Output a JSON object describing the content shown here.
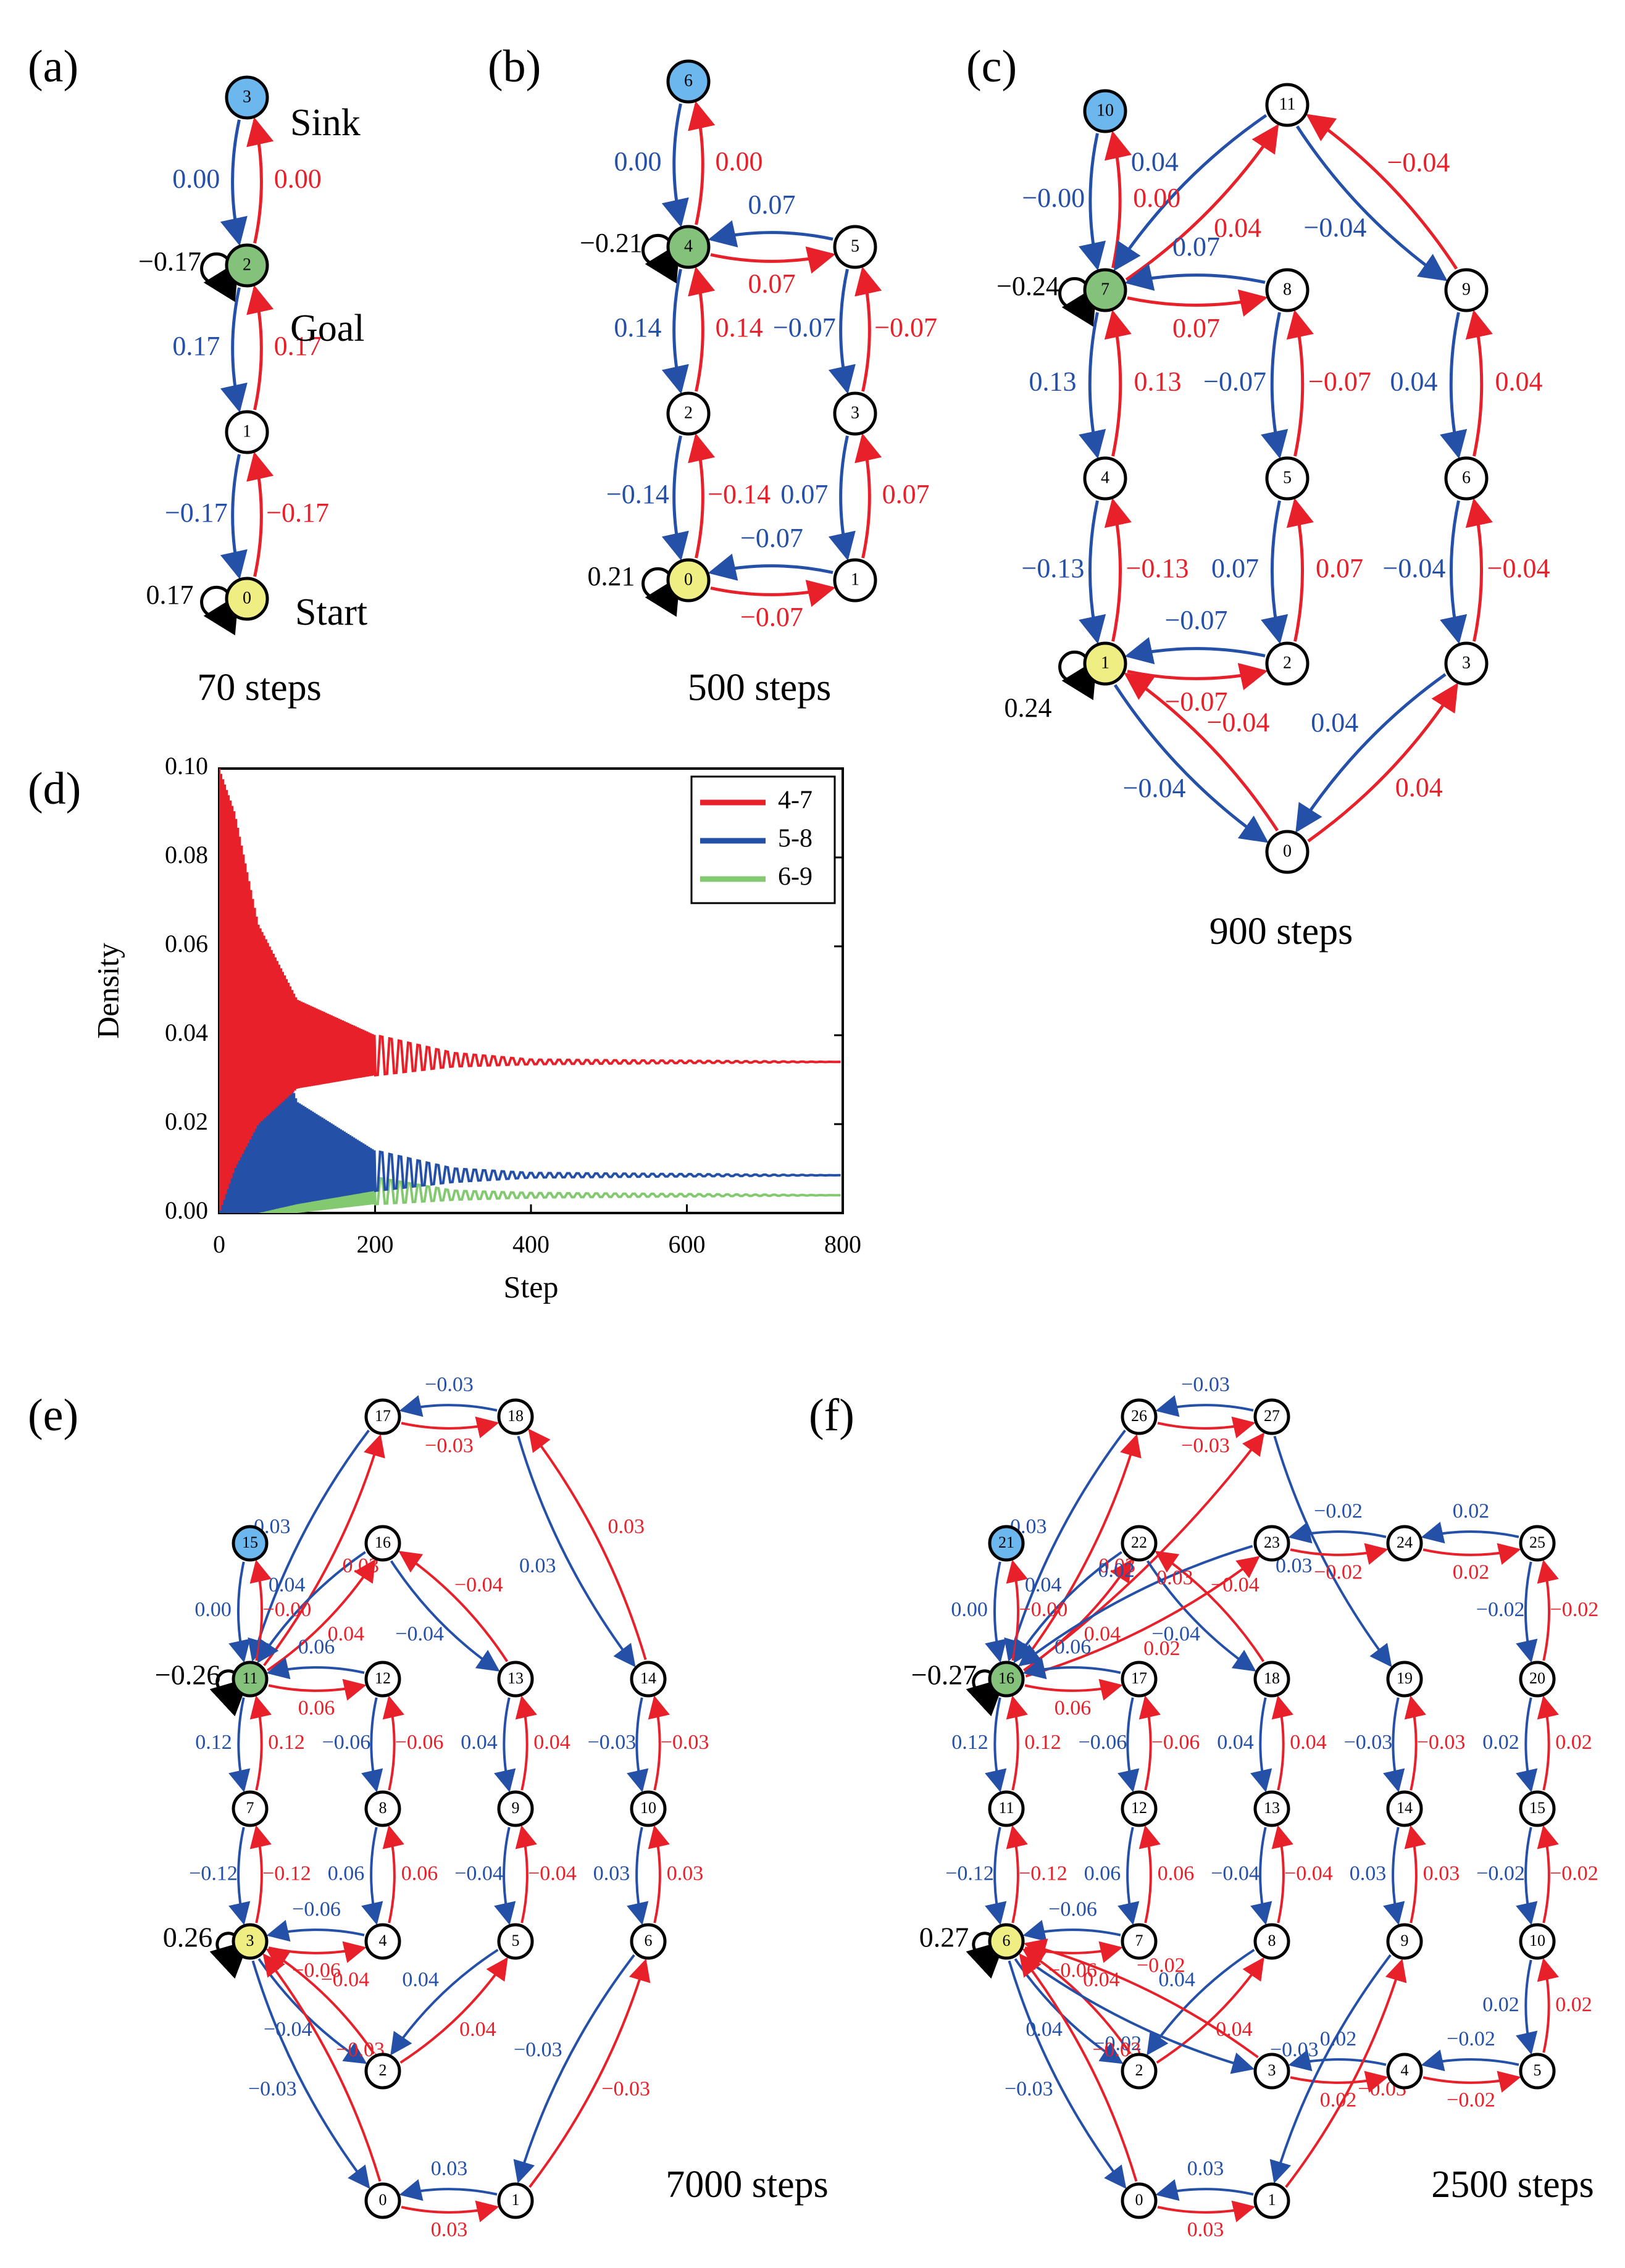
{
  "colors": {
    "red": "#e8202a",
    "blue": "#2450a8",
    "green": "#82c96f",
    "sink": "#6cb7ee",
    "goal": "#84c27c",
    "start": "#eeee82",
    "node_fill": "#ffffff",
    "edge": "#000000"
  },
  "panels": [
    {
      "id": "a",
      "label": "(a)",
      "caption": "70 steps",
      "nodes": [
        {
          "id": "0",
          "role": "start"
        },
        {
          "id": "1",
          "role": "plain"
        },
        {
          "id": "2",
          "role": "goal"
        },
        {
          "id": "3",
          "role": "sink"
        }
      ],
      "self_loops": [
        {
          "node": "2",
          "value": "−0.17"
        },
        {
          "node": "0",
          "value": "0.17"
        }
      ],
      "edge_pairs": [
        {
          "a": "0",
          "b": "1",
          "red": "−0.17",
          "blue": "−0.17"
        },
        {
          "a": "1",
          "b": "2",
          "red": "0.17",
          "blue": "0.17"
        },
        {
          "a": "2",
          "b": "3",
          "red": "0.00",
          "blue": "0.00"
        }
      ],
      "annotations": [
        "Sink",
        "Goal",
        "Start"
      ]
    },
    {
      "id": "b",
      "label": "(b)",
      "caption": "500 steps",
      "nodes": [
        {
          "id": "0",
          "role": "start"
        },
        {
          "id": "1",
          "role": "plain"
        },
        {
          "id": "2",
          "role": "plain"
        },
        {
          "id": "3",
          "role": "plain"
        },
        {
          "id": "4",
          "role": "goal"
        },
        {
          "id": "5",
          "role": "plain"
        },
        {
          "id": "6",
          "role": "sink"
        }
      ],
      "self_loops": [
        {
          "node": "4",
          "value": "−0.21"
        },
        {
          "node": "0",
          "value": "0.21"
        }
      ],
      "edge_pairs": [
        {
          "a": "4",
          "b": "6",
          "red": "0.00",
          "blue": "0.00"
        },
        {
          "a": "4",
          "b": "5",
          "red": "0.07",
          "blue": "0.07"
        },
        {
          "a": "2",
          "b": "4",
          "red": "0.14",
          "blue": "0.14"
        },
        {
          "a": "3",
          "b": "5",
          "red": "−0.07",
          "blue": "−0.07"
        },
        {
          "a": "0",
          "b": "2",
          "red": "−0.14",
          "blue": "−0.14"
        },
        {
          "a": "1",
          "b": "3",
          "red": "0.07",
          "blue": "0.07"
        },
        {
          "a": "0",
          "b": "1",
          "red": "−0.07",
          "blue": "−0.07"
        }
      ]
    },
    {
      "id": "c",
      "label": "(c)",
      "caption": "900 steps",
      "nodes": [
        {
          "id": "0",
          "role": "plain"
        },
        {
          "id": "1",
          "role": "start"
        },
        {
          "id": "2",
          "role": "plain"
        },
        {
          "id": "3",
          "role": "plain"
        },
        {
          "id": "4",
          "role": "plain"
        },
        {
          "id": "5",
          "role": "plain"
        },
        {
          "id": "6",
          "role": "plain"
        },
        {
          "id": "7",
          "role": "goal"
        },
        {
          "id": "8",
          "role": "plain"
        },
        {
          "id": "9",
          "role": "plain"
        },
        {
          "id": "10",
          "role": "sink"
        },
        {
          "id": "11",
          "role": "plain"
        }
      ],
      "self_loops": [
        {
          "node": "7",
          "value": "−0.24"
        },
        {
          "node": "1",
          "value": "0.24"
        }
      ],
      "edge_pairs": [
        {
          "a": "7",
          "b": "10",
          "red": "0.00",
          "blue": "−0.00"
        },
        {
          "a": "7",
          "b": "11",
          "red": "0.04",
          "blue": "0.04"
        },
        {
          "a": "9",
          "b": "11",
          "red": "−0.04",
          "blue": "−0.04"
        },
        {
          "a": "7",
          "b": "8",
          "red": "0.07",
          "blue": "0.07"
        },
        {
          "a": "4",
          "b": "7",
          "red": "0.13",
          "blue": "0.13"
        },
        {
          "a": "5",
          "b": "8",
          "red": "−0.07",
          "blue": "−0.07"
        },
        {
          "a": "6",
          "b": "9",
          "red": "0.04",
          "blue": "0.04"
        },
        {
          "a": "1",
          "b": "4",
          "red": "−0.13",
          "blue": "−0.13"
        },
        {
          "a": "2",
          "b": "5",
          "red": "0.07",
          "blue": "0.07"
        },
        {
          "a": "3",
          "b": "6",
          "red": "−0.04",
          "blue": "−0.04"
        },
        {
          "a": "1",
          "b": "2",
          "red": "−0.07",
          "blue": "−0.07"
        },
        {
          "a": "0",
          "b": "1",
          "red": "−0.04",
          "blue": "−0.04"
        },
        {
          "a": "0",
          "b": "3",
          "red": "0.04",
          "blue": "0.04"
        }
      ]
    },
    {
      "id": "e",
      "label": "(e)",
      "caption": "7000 steps",
      "nodes": [
        {
          "id": "0",
          "role": "plain"
        },
        {
          "id": "1",
          "role": "plain"
        },
        {
          "id": "2",
          "role": "plain"
        },
        {
          "id": "3",
          "role": "start"
        },
        {
          "id": "4",
          "role": "plain"
        },
        {
          "id": "5",
          "role": "plain"
        },
        {
          "id": "6",
          "role": "plain"
        },
        {
          "id": "7",
          "role": "plain"
        },
        {
          "id": "8",
          "role": "plain"
        },
        {
          "id": "9",
          "role": "plain"
        },
        {
          "id": "10",
          "role": "plain"
        },
        {
          "id": "11",
          "role": "goal"
        },
        {
          "id": "12",
          "role": "plain"
        },
        {
          "id": "13",
          "role": "plain"
        },
        {
          "id": "14",
          "role": "plain"
        },
        {
          "id": "15",
          "role": "sink"
        },
        {
          "id": "16",
          "role": "plain"
        },
        {
          "id": "17",
          "role": "plain"
        },
        {
          "id": "18",
          "role": "plain"
        }
      ],
      "self_loops": [
        {
          "node": "11",
          "value": "−0.26"
        },
        {
          "node": "3",
          "value": "0.26"
        }
      ],
      "edge_pairs": [
        {
          "a": "17",
          "b": "18",
          "red": "−0.03",
          "blue": "−0.03"
        },
        {
          "a": "11",
          "b": "17",
          "red": "0.03",
          "blue": "0.03"
        },
        {
          "a": "14",
          "b": "18",
          "red": "0.03",
          "blue": "0.03"
        },
        {
          "a": "11",
          "b": "15",
          "red": "−0.00",
          "blue": "0.00"
        },
        {
          "a": "11",
          "b": "16",
          "red": "0.04",
          "blue": "0.04"
        },
        {
          "a": "13",
          "b": "16",
          "red": "−0.04",
          "blue": "−0.04"
        },
        {
          "a": "11",
          "b": "12",
          "red": "0.06",
          "blue": "0.06"
        },
        {
          "a": "7",
          "b": "11",
          "red": "0.12",
          "blue": "0.12"
        },
        {
          "a": "8",
          "b": "12",
          "red": "−0.06",
          "blue": "−0.06"
        },
        {
          "a": "9",
          "b": "13",
          "red": "0.04",
          "blue": "0.04"
        },
        {
          "a": "10",
          "b": "14",
          "red": "−0.03",
          "blue": "−0.03"
        },
        {
          "a": "3",
          "b": "7",
          "red": "−0.12",
          "blue": "−0.12"
        },
        {
          "a": "4",
          "b": "8",
          "red": "0.06",
          "blue": "0.06"
        },
        {
          "a": "5",
          "b": "9",
          "red": "−0.04",
          "blue": "−0.04"
        },
        {
          "a": "6",
          "b": "10",
          "red": "0.03",
          "blue": "0.03"
        },
        {
          "a": "3",
          "b": "4",
          "red": "−0.06",
          "blue": "−0.06"
        },
        {
          "a": "2",
          "b": "3",
          "red": "−0.04",
          "blue": "−0.04"
        },
        {
          "a": "2",
          "b": "5",
          "red": "0.04",
          "blue": "0.04"
        },
        {
          "a": "1",
          "b": "6",
          "red": "−0.03",
          "blue": "−0.03"
        },
        {
          "a": "0",
          "b": "3",
          "red": "−0.03",
          "blue": "−0.03"
        },
        {
          "a": "0",
          "b": "1",
          "red": "0.03",
          "blue": "0.03"
        }
      ]
    },
    {
      "id": "f",
      "label": "(f)",
      "caption": "2500 steps",
      "nodes": [
        {
          "id": "0",
          "role": "plain"
        },
        {
          "id": "1",
          "role": "plain"
        },
        {
          "id": "2",
          "role": "plain"
        },
        {
          "id": "3",
          "role": "plain"
        },
        {
          "id": "4",
          "role": "plain"
        },
        {
          "id": "5",
          "role": "plain"
        },
        {
          "id": "6",
          "role": "start"
        },
        {
          "id": "7",
          "role": "plain"
        },
        {
          "id": "8",
          "role": "plain"
        },
        {
          "id": "9",
          "role": "plain"
        },
        {
          "id": "10",
          "role": "plain"
        },
        {
          "id": "11",
          "role": "plain"
        },
        {
          "id": "12",
          "role": "plain"
        },
        {
          "id": "13",
          "role": "plain"
        },
        {
          "id": "14",
          "role": "plain"
        },
        {
          "id": "15",
          "role": "plain"
        },
        {
          "id": "16",
          "role": "goal"
        },
        {
          "id": "17",
          "role": "plain"
        },
        {
          "id": "18",
          "role": "plain"
        },
        {
          "id": "19",
          "role": "plain"
        },
        {
          "id": "20",
          "role": "plain"
        },
        {
          "id": "21",
          "role": "sink"
        },
        {
          "id": "22",
          "role": "plain"
        },
        {
          "id": "23",
          "role": "plain"
        },
        {
          "id": "24",
          "role": "plain"
        },
        {
          "id": "25",
          "role": "plain"
        },
        {
          "id": "26",
          "role": "plain"
        },
        {
          "id": "27",
          "role": "plain"
        }
      ],
      "self_loops": [
        {
          "node": "16",
          "value": "−0.27"
        },
        {
          "node": "6",
          "value": "0.27"
        }
      ],
      "edge_pairs": [
        {
          "a": "26",
          "b": "27",
          "red": "−0.03",
          "blue": "−0.03"
        },
        {
          "a": "16",
          "b": "26",
          "red": "0.03",
          "blue": "0.03"
        },
        {
          "a": "16",
          "b": "27",
          "red": "0.03",
          "blue": "-"
        },
        {
          "a": "19",
          "b": "27",
          "red": "-",
          "blue": "0.03"
        },
        {
          "a": "16",
          "b": "21",
          "red": "−0.00",
          "blue": "0.00"
        },
        {
          "a": "16",
          "b": "22",
          "red": "0.04",
          "blue": "0.04"
        },
        {
          "a": "18",
          "b": "22",
          "red": "−0.04",
          "blue": "−0.04"
        },
        {
          "a": "16",
          "b": "23",
          "red": "0.02",
          "blue": "0.02"
        },
        {
          "a": "23",
          "b": "24",
          "red": "−0.02",
          "blue": "−0.02"
        },
        {
          "a": "24",
          "b": "25",
          "red": "0.02",
          "blue": "0.02"
        },
        {
          "a": "16",
          "b": "17",
          "red": "0.06",
          "blue": "0.06"
        },
        {
          "a": "20",
          "b": "25",
          "red": "−0.02",
          "blue": "−0.02"
        },
        {
          "a": "11",
          "b": "16",
          "red": "0.12",
          "blue": "0.12"
        },
        {
          "a": "12",
          "b": "17",
          "red": "−0.06",
          "blue": "−0.06"
        },
        {
          "a": "13",
          "b": "18",
          "red": "0.04",
          "blue": "0.04"
        },
        {
          "a": "14",
          "b": "19",
          "red": "−0.03",
          "blue": "−0.03"
        },
        {
          "a": "15",
          "b": "20",
          "red": "0.02",
          "blue": "0.02"
        },
        {
          "a": "6",
          "b": "11",
          "red": "−0.12",
          "blue": "−0.12"
        },
        {
          "a": "7",
          "b": "12",
          "red": "0.06",
          "blue": "0.06"
        },
        {
          "a": "8",
          "b": "13",
          "red": "−0.04",
          "blue": "−0.04"
        },
        {
          "a": "9",
          "b": "14",
          "red": "0.03",
          "blue": "0.03"
        },
        {
          "a": "10",
          "b": "15",
          "red": "−0.02",
          "blue": "−0.02"
        },
        {
          "a": "6",
          "b": "7",
          "red": "−0.06",
          "blue": "−0.06"
        },
        {
          "a": "2",
          "b": "6",
          "red": "0.04",
          "blue": "0.04"
        },
        {
          "a": "2",
          "b": "8",
          "red": "0.04",
          "blue": "0.04"
        },
        {
          "a": "3",
          "b": "6",
          "red": "−0.02",
          "blue": "−0.02"
        },
        {
          "a": "3",
          "b": "4",
          "red": "0.02",
          "blue": "0.02"
        },
        {
          "a": "4",
          "b": "5",
          "red": "−0.02",
          "blue": "−0.02"
        },
        {
          "a": "5",
          "b": "10",
          "red": "0.02",
          "blue": "0.02"
        },
        {
          "a": "1",
          "b": "9",
          "red": "−0.03",
          "blue": "−0.03"
        },
        {
          "a": "0",
          "b": "6",
          "red": "−0.03",
          "blue": "−0.03"
        },
        {
          "a": "0",
          "b": "1",
          "red": "0.03",
          "blue": "0.03"
        }
      ]
    }
  ],
  "chart_panel": {
    "label": "(d)",
    "chart_data": {
      "type": "line",
      "xlabel": "Step",
      "ylabel": "Density",
      "xlim": [
        0,
        800
      ],
      "ylim": [
        0,
        0.1
      ],
      "xticks": [
        "0",
        "200",
        "400",
        "600",
        "800"
      ],
      "yticks": [
        "0.00",
        "0.02",
        "0.04",
        "0.06",
        "0.08",
        "0.10"
      ],
      "legend_position": "top-right",
      "series": [
        {
          "name": "4-7",
          "color": "#e8202a",
          "steady": 0.034,
          "envelope_high": [
            [
              0,
              0.1
            ],
            [
              20,
              0.09
            ],
            [
              50,
              0.065
            ],
            [
              100,
              0.048
            ],
            [
              200,
              0.04
            ],
            [
              300,
              0.036
            ],
            [
              400,
              0.0345
            ],
            [
              800,
              0.034
            ]
          ],
          "envelope_low": [
            [
              0,
              0.0
            ],
            [
              20,
              0.01
            ],
            [
              50,
              0.02
            ],
            [
              100,
              0.028
            ],
            [
              200,
              0.031
            ],
            [
              300,
              0.033
            ],
            [
              400,
              0.0335
            ],
            [
              800,
              0.034
            ]
          ]
        },
        {
          "name": "5-8",
          "color": "#2450a8",
          "steady": 0.0085,
          "envelope_high": [
            [
              0,
              0.1
            ],
            [
              20,
              0.08
            ],
            [
              50,
              0.05
            ],
            [
              100,
              0.025
            ],
            [
              200,
              0.014
            ],
            [
              300,
              0.01
            ],
            [
              400,
              0.009
            ],
            [
              800,
              0.0085
            ]
          ],
          "envelope_low": [
            [
              0,
              0.0
            ],
            [
              20,
              0.0
            ],
            [
              50,
              0.0
            ],
            [
              100,
              0.002
            ],
            [
              200,
              0.005
            ],
            [
              300,
              0.007
            ],
            [
              400,
              0.008
            ],
            [
              800,
              0.0085
            ]
          ]
        },
        {
          "name": "6-9",
          "color": "#82c96f",
          "steady": 0.004,
          "envelope_high": [
            [
              0,
              0.1
            ],
            [
              20,
              0.07
            ],
            [
              50,
              0.04
            ],
            [
              100,
              0.02
            ],
            [
              200,
              0.008
            ],
            [
              300,
              0.005
            ],
            [
              400,
              0.0045
            ],
            [
              800,
              0.004
            ]
          ],
          "envelope_low": [
            [
              0,
              0.0
            ],
            [
              20,
              0.0
            ],
            [
              50,
              0.0
            ],
            [
              100,
              0.0
            ],
            [
              200,
              0.002
            ],
            [
              300,
              0.003
            ],
            [
              400,
              0.0035
            ],
            [
              800,
              0.004
            ]
          ]
        }
      ]
    }
  }
}
